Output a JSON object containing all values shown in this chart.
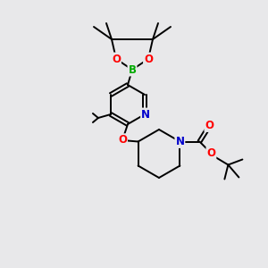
{
  "background_color": "#e8e8ea",
  "atom_colors": {
    "O": "#ff0000",
    "N": "#0000cc",
    "B": "#00aa00",
    "C": "#000000"
  },
  "bond_color": "#000000",
  "bond_width": 1.4,
  "figsize": [
    3.0,
    3.0
  ],
  "dpi": 100
}
